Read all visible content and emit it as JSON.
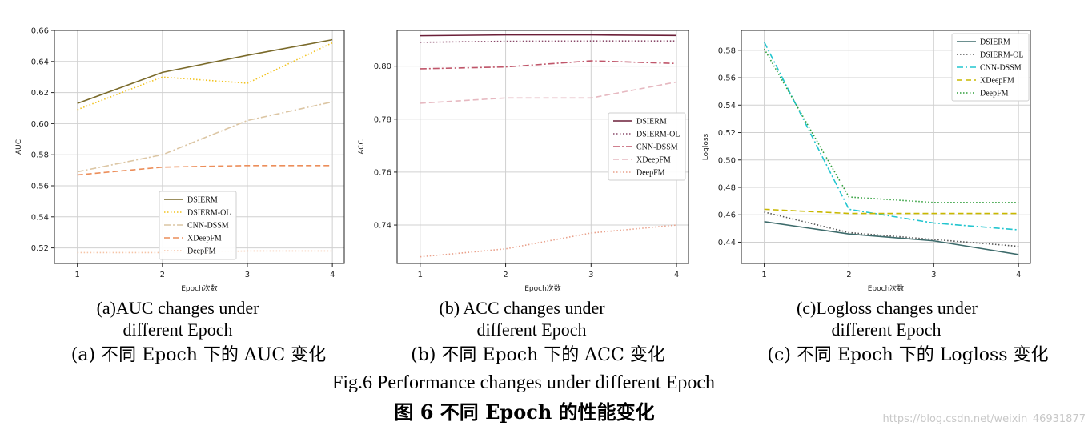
{
  "chart_data": [
    {
      "type": "line",
      "xlabel": "Epoch次数",
      "ylabel": "AUC",
      "x": [
        1,
        2,
        3,
        4
      ],
      "ylim": [
        0.51,
        0.66
      ],
      "yticks": [
        0.52,
        0.54,
        0.56,
        0.58,
        0.6,
        0.62,
        0.64,
        0.66
      ],
      "grid": true,
      "legend": "lower-center",
      "series": [
        {
          "name": "DSIERM",
          "values": [
            0.613,
            0.633,
            0.644,
            0.654
          ],
          "color": "#7a6a2a",
          "style": "solid"
        },
        {
          "name": "DSIERM-OL",
          "values": [
            0.609,
            0.63,
            0.626,
            0.652
          ],
          "color": "#f2c31f",
          "style": "dotted"
        },
        {
          "name": "CNN-DSSM",
          "values": [
            0.569,
            0.58,
            0.602,
            0.614
          ],
          "color": "#dcc6a4",
          "style": "dashdot"
        },
        {
          "name": "XDeepFM",
          "values": [
            0.567,
            0.572,
            0.573,
            0.573
          ],
          "color": "#ec8e5a",
          "style": "dashed"
        },
        {
          "name": "DeepFM",
          "values": [
            0.517,
            0.517,
            0.518,
            0.518
          ],
          "color": "#f5c4a6",
          "style": "dotted"
        }
      ]
    },
    {
      "type": "line",
      "xlabel": "Epoch次数",
      "ylabel": "ACC",
      "x": [
        1,
        2,
        3,
        4
      ],
      "ylim": [
        0.7255,
        0.8135
      ],
      "yticks": [
        0.74,
        0.76,
        0.78,
        0.8
      ],
      "grid": true,
      "legend": "center-right",
      "series": [
        {
          "name": "DSIERM",
          "values": [
            0.8115,
            0.8118,
            0.8118,
            0.8116
          ],
          "color": "#6b1f38",
          "style": "solid"
        },
        {
          "name": "DSIERM-OL",
          "values": [
            0.809,
            0.8094,
            0.8095,
            0.8095
          ],
          "color": "#8a4a6a",
          "style": "dotted"
        },
        {
          "name": "CNN-DSSM",
          "values": [
            0.799,
            0.7997,
            0.802,
            0.801
          ],
          "color": "#c0566a",
          "style": "dashdot"
        },
        {
          "name": "XDeepFM",
          "values": [
            0.786,
            0.788,
            0.788,
            0.794
          ],
          "color": "#e6b8c0",
          "style": "dashed"
        },
        {
          "name": "DeepFM",
          "values": [
            0.728,
            0.731,
            0.737,
            0.74
          ],
          "color": "#e9a08a",
          "style": "dotted"
        }
      ]
    },
    {
      "type": "line",
      "xlabel": "Epoch次数",
      "ylabel": "Logloss",
      "x": [
        1,
        2,
        3,
        4
      ],
      "ylim": [
        0.4245,
        0.5945
      ],
      "yticks": [
        0.44,
        0.46,
        0.48,
        0.5,
        0.52,
        0.54,
        0.56,
        0.58
      ],
      "grid": true,
      "legend": "top-right",
      "series": [
        {
          "name": "DSIERM",
          "values": [
            0.455,
            0.446,
            0.441,
            0.431
          ],
          "color": "#3d6b6b",
          "style": "solid"
        },
        {
          "name": "DSIERM-OL",
          "values": [
            0.462,
            0.447,
            0.442,
            0.437
          ],
          "color": "#555555",
          "style": "dotted"
        },
        {
          "name": "CNN-DSSM",
          "values": [
            0.586,
            0.464,
            0.454,
            0.449
          ],
          "color": "#22c5cf",
          "style": "dashdot"
        },
        {
          "name": "XDeepFM",
          "values": [
            0.464,
            0.461,
            0.461,
            0.461
          ],
          "color": "#c9b800",
          "style": "dashed"
        },
        {
          "name": "DeepFM",
          "values": [
            0.581,
            0.473,
            0.469,
            0.469
          ],
          "color": "#2f9e3a",
          "style": "dotted"
        }
      ]
    }
  ],
  "captions": [
    {
      "en_line1": "(a)AUC changes under",
      "en_line2": "different Epoch",
      "zh": "(a)  不同 Epoch 下的 AUC 变化"
    },
    {
      "en_line1": "(b) ACC changes under",
      "en_line2": "different Epoch",
      "zh": "(b)  不同 Epoch 下的 ACC 变化"
    },
    {
      "en_line1": "(c)Logloss changes under",
      "en_line2": "different Epoch",
      "zh": "(c)  不同 Epoch 下的 Logloss 变化"
    }
  ],
  "figure": {
    "en": "Fig.6    Performance changes under different Epoch",
    "zh": "图 6    不同 Epoch 的性能变化"
  },
  "watermark": "https://blog.csdn.net/weixin_46931877"
}
